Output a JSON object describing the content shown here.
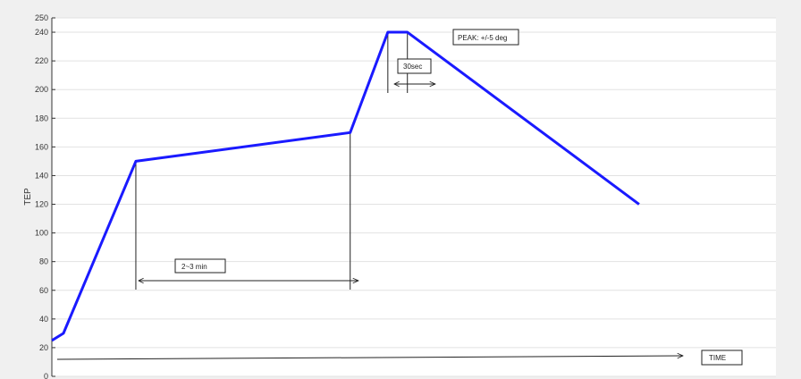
{
  "colors": {
    "background": "#f0f0f0",
    "plot_area": "#ffffff",
    "series": "#1a1aff"
  },
  "chart_data": {
    "type": "line",
    "title": "",
    "xlabel": "",
    "ylabel": "TEP",
    "ylim": [
      0,
      250
    ],
    "xlim": [
      0,
      100
    ],
    "yticks": [
      0,
      20,
      40,
      60,
      80,
      100,
      120,
      140,
      160,
      180,
      200,
      220,
      240,
      250
    ],
    "grid": true,
    "series": [
      {
        "x": [
          0,
          1.6,
          11.6,
          41.2,
          46.4,
          49.1,
          81.1
        ],
        "y": [
          25,
          30,
          150,
          170,
          240,
          240,
          120
        ]
      }
    ],
    "annotations": {
      "time_arrow_label": "TIME",
      "dwell_label": "2~3 min",
      "peak_time_label": "30sec",
      "peak_tolerance_label": "PEAK: +/-5 deg"
    }
  }
}
